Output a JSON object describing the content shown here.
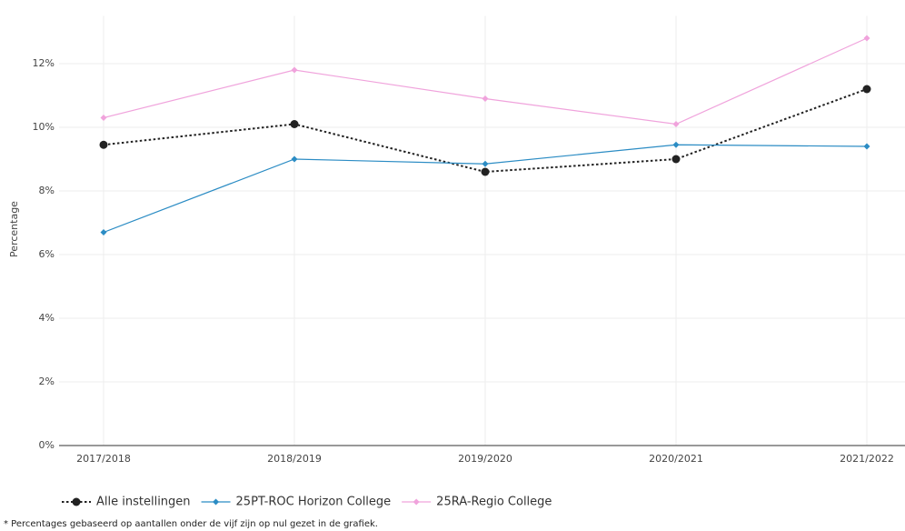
{
  "chart_data": {
    "type": "line",
    "y_label": "Percentage",
    "categories": [
      "2017/2018",
      "2018/2019",
      "2019/2020",
      "2020/2021",
      "2021/2022"
    ],
    "series": [
      {
        "name": "Alle instellingen",
        "color": "#222222",
        "style": "dotted",
        "marker": "circle",
        "values": [
          9.45,
          10.1,
          8.6,
          9.0,
          11.2
        ]
      },
      {
        "name": "25PT-ROC Horizon College",
        "color": "#2b8cc4",
        "style": "solid",
        "marker": "diamond",
        "values": [
          6.7,
          9.0,
          8.85,
          9.45,
          9.4
        ]
      },
      {
        "name": "25RA-Regio College",
        "color": "#f0a3dc",
        "style": "solid",
        "marker": "diamond",
        "values": [
          10.3,
          11.8,
          10.9,
          10.1,
          12.8
        ]
      }
    ],
    "ylim": [
      0,
      13.5
    ],
    "yticks": [
      {
        "value": 0,
        "label": "0%"
      },
      {
        "value": 2,
        "label": "2%"
      },
      {
        "value": 4,
        "label": "4%"
      },
      {
        "value": 6,
        "label": "6%"
      },
      {
        "value": 8,
        "label": "8%"
      },
      {
        "value": 10,
        "label": "10%"
      },
      {
        "value": 12,
        "label": "12%"
      }
    ],
    "grid": true,
    "legend": "bottom",
    "footnote": "* Percentages gebaseerd op aantallen onder de vijf zijn op nul gezet in de grafiek."
  }
}
